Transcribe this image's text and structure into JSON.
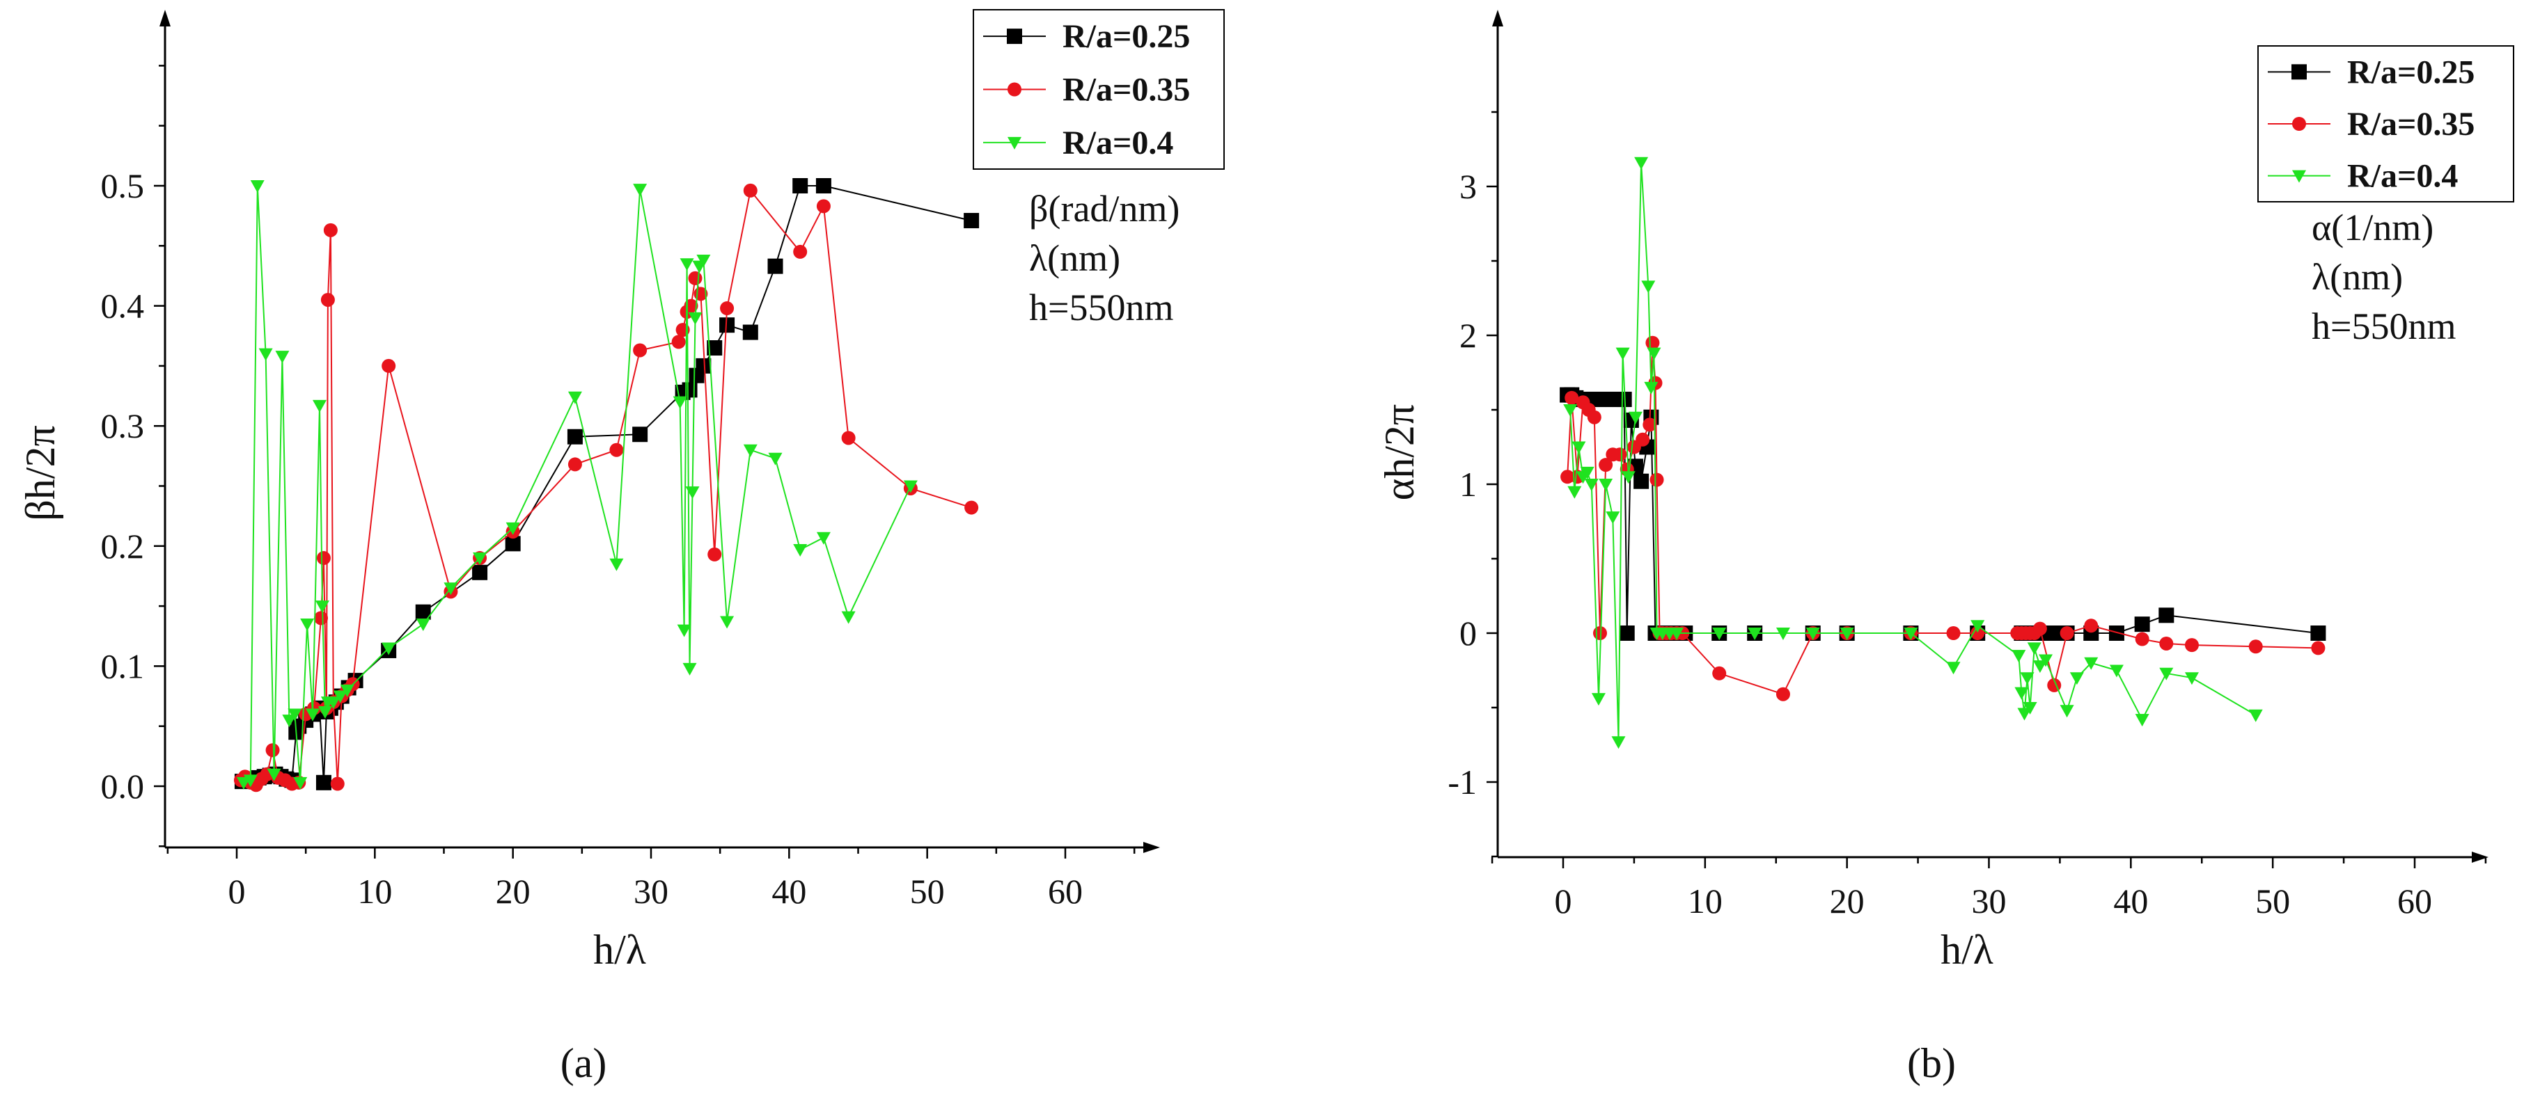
{
  "colors": {
    "R_0_25": "#000000",
    "R_0_35": "#e8141c",
    "R_0_4": "#1fe21f",
    "axis": "#000000"
  },
  "chart_data": [
    {
      "type": "line",
      "panel": "a",
      "caption": "(a)",
      "xlabel": "h/λ",
      "ylabel": "βh/2π",
      "xlim": [
        -5,
        65
      ],
      "ylim": [
        -0.05,
        0.63
      ],
      "xticks": [
        0,
        10,
        20,
        30,
        40,
        50,
        60
      ],
      "xtick_labels": [
        "0",
        "10",
        "20",
        "30",
        "40",
        "50",
        "60"
      ],
      "yticks": [
        0.0,
        0.1,
        0.2,
        0.3,
        0.4,
        0.5
      ],
      "ytick_labels": [
        "0.0",
        "0.1",
        "0.2",
        "0.3",
        "0.4",
        "0.5"
      ],
      "annotations": [
        "β(rad/nm)",
        "λ(nm)",
        "h=550nm"
      ],
      "legend": [
        "R/a=0.25",
        "R/a=0.35",
        "R/a=0.4"
      ],
      "legend_position": "top-right",
      "series": [
        {
          "name": "R/a=0.25",
          "marker": "square",
          "x": [
            0.4,
            0.8,
            1.2,
            1.6,
            2.0,
            2.4,
            2.8,
            3.2,
            3.6,
            4.0,
            4.3,
            4.5,
            5.0,
            5.5,
            6.0,
            6.3,
            6.5,
            6.8,
            7.2,
            7.6,
            8.1,
            8.6,
            11.0,
            13.5,
            17.6,
            20.0,
            24.5,
            29.2,
            32.3,
            32.8,
            33.3,
            33.8,
            34.6,
            35.5,
            37.2,
            39.0,
            40.8,
            42.5,
            53.2
          ],
          "y": [
            0.004,
            0.005,
            0.006,
            0.007,
            0.008,
            0.009,
            0.01,
            0.008,
            0.006,
            0.005,
            0.045,
            0.05,
            0.055,
            0.06,
            0.065,
            0.003,
            0.062,
            0.065,
            0.07,
            0.075,
            0.082,
            0.088,
            0.113,
            0.145,
            0.178,
            0.202,
            0.291,
            0.293,
            0.328,
            0.33,
            0.342,
            0.35,
            0.365,
            0.384,
            0.378,
            0.433,
            0.5,
            0.5,
            0.471
          ]
        },
        {
          "name": "R/a=0.35",
          "marker": "circle",
          "x": [
            0.3,
            0.6,
            1.0,
            1.4,
            1.8,
            2.2,
            2.6,
            3.0,
            3.5,
            4.0,
            4.5,
            5.0,
            5.6,
            6.1,
            6.3,
            6.5,
            6.6,
            6.8,
            7.0,
            7.3,
            7.6,
            8.0,
            8.4,
            11.0,
            15.5,
            17.6,
            20.0,
            24.5,
            27.5,
            29.2,
            32.0,
            32.3,
            32.6,
            32.9,
            33.2,
            33.6,
            34.6,
            35.5,
            37.2,
            40.8,
            42.5,
            44.3,
            48.8,
            53.2
          ],
          "y": [
            0.005,
            0.008,
            0.003,
            0.001,
            0.006,
            0.01,
            0.03,
            0.007,
            0.005,
            0.002,
            0.003,
            0.06,
            0.065,
            0.14,
            0.19,
            0.065,
            0.405,
            0.463,
            0.07,
            0.002,
            0.075,
            0.08,
            0.085,
            0.35,
            0.162,
            0.19,
            0.212,
            0.268,
            0.28,
            0.363,
            0.37,
            0.38,
            0.395,
            0.4,
            0.423,
            0.41,
            0.193,
            0.398,
            0.496,
            0.445,
            0.483,
            0.29,
            0.248,
            0.232
          ]
        },
        {
          "name": "R/a=0.4",
          "marker": "triangle-down",
          "x": [
            0.5,
            1.0,
            1.5,
            2.1,
            2.7,
            3.3,
            3.8,
            4.2,
            4.6,
            5.1,
            5.5,
            6.0,
            6.2,
            6.4,
            6.6,
            7.0,
            7.5,
            8.0,
            11.0,
            13.5,
            15.5,
            17.6,
            20.0,
            24.5,
            27.5,
            29.2,
            32.1,
            32.4,
            32.6,
            32.8,
            33.0,
            33.2,
            33.5,
            33.8,
            35.5,
            37.2,
            39.0,
            40.8,
            42.5,
            44.3,
            48.8
          ],
          "y": [
            0.003,
            0.005,
            0.5,
            0.36,
            0.01,
            0.358,
            0.055,
            0.06,
            0.003,
            0.135,
            0.06,
            0.317,
            0.15,
            0.062,
            0.07,
            0.07,
            0.075,
            0.08,
            0.115,
            0.135,
            0.165,
            0.19,
            0.215,
            0.324,
            0.185,
            0.497,
            0.32,
            0.13,
            0.435,
            0.098,
            0.245,
            0.39,
            0.433,
            0.438,
            0.137,
            0.28,
            0.273,
            0.197,
            0.207,
            0.141,
            0.25
          ]
        }
      ]
    },
    {
      "type": "line",
      "panel": "b",
      "caption": "(b)",
      "xlabel": "h/λ",
      "ylabel": "αh/2π",
      "xlim": [
        -5,
        65
      ],
      "ylim": [
        -1.5,
        3.9
      ],
      "xticks": [
        0,
        10,
        20,
        30,
        40,
        50,
        60
      ],
      "xtick_labels": [
        "0",
        "10",
        "20",
        "30",
        "40",
        "50",
        "60"
      ],
      "yticks": [
        -1,
        0,
        1,
        2,
        3
      ],
      "ytick_labels": [
        "-1",
        "0",
        "1",
        "2",
        "3"
      ],
      "annotations": [
        "α(1/nm)",
        "λ(nm)",
        "h=550nm"
      ],
      "legend": [
        "R/a=0.25",
        "R/a=0.35",
        "R/a=0.4"
      ],
      "legend_position": "top-right",
      "series": [
        {
          "name": "R/a=0.25",
          "marker": "square",
          "x": [
            0.3,
            0.6,
            0.9,
            1.2,
            1.6,
            2.0,
            2.5,
            3.0,
            3.5,
            4.0,
            4.3,
            4.5,
            4.8,
            5.1,
            5.5,
            5.9,
            6.2,
            6.5,
            6.8,
            7.2,
            7.6,
            8.1,
            8.6,
            11.0,
            13.5,
            17.6,
            20.0,
            24.5,
            29.2,
            32.3,
            32.8,
            33.3,
            33.8,
            34.6,
            35.5,
            37.2,
            39.0,
            40.8,
            42.5,
            53.2
          ],
          "y": [
            1.6,
            1.6,
            1.58,
            1.57,
            1.57,
            1.57,
            1.57,
            1.57,
            1.57,
            1.57,
            1.57,
            0.0,
            1.43,
            1.12,
            1.02,
            1.25,
            1.45,
            0.0,
            0.0,
            0.0,
            0.0,
            0.0,
            0.0,
            0.0,
            0.0,
            0.0,
            0.0,
            0.0,
            0.0,
            0.0,
            0.0,
            0.0,
            0.0,
            0.0,
            0.0,
            0.0,
            0.0,
            0.06,
            0.12,
            0.0
          ]
        },
        {
          "name": "R/a=0.35",
          "marker": "circle",
          "x": [
            0.3,
            0.6,
            1.0,
            1.4,
            1.8,
            2.2,
            2.6,
            3.0,
            3.5,
            4.0,
            4.5,
            5.0,
            5.6,
            6.1,
            6.3,
            6.5,
            6.6,
            6.8,
            7.0,
            7.3,
            7.6,
            8.0,
            8.4,
            11.0,
            15.5,
            17.6,
            20.0,
            24.5,
            27.5,
            29.2,
            32.0,
            32.3,
            32.6,
            32.9,
            33.2,
            33.6,
            34.6,
            35.5,
            37.2,
            40.8,
            42.5,
            44.3,
            48.8,
            53.2
          ],
          "y": [
            1.05,
            1.58,
            1.05,
            1.55,
            1.5,
            1.45,
            0.0,
            1.13,
            1.2,
            1.2,
            1.1,
            1.25,
            1.3,
            1.4,
            1.95,
            1.68,
            1.03,
            0.0,
            0.0,
            0.0,
            0.0,
            0.0,
            0.0,
            -0.27,
            -0.41,
            0.0,
            0.0,
            0.0,
            0.0,
            0.0,
            0.0,
            0.0,
            0.0,
            0.0,
            0.0,
            0.03,
            -0.35,
            0.0,
            0.05,
            -0.04,
            -0.07,
            -0.08,
            -0.09,
            -0.1
          ]
        },
        {
          "name": "R/a=0.4",
          "marker": "triangle-down",
          "x": [
            0.5,
            0.8,
            1.1,
            1.4,
            1.7,
            2.0,
            2.5,
            3.0,
            3.5,
            3.9,
            4.2,
            4.6,
            5.1,
            5.5,
            6.0,
            6.2,
            6.4,
            6.6,
            7.0,
            7.5,
            8.0,
            11.0,
            13.5,
            15.5,
            17.6,
            20.0,
            24.5,
            27.5,
            29.2,
            32.1,
            32.3,
            32.5,
            32.7,
            32.9,
            33.2,
            33.6,
            34.0,
            35.5,
            36.2,
            37.2,
            39.0,
            40.8,
            42.5,
            44.3,
            48.8
          ],
          "y": [
            1.5,
            0.95,
            1.25,
            1.05,
            1.08,
            1.0,
            -0.44,
            1.0,
            0.78,
            -0.73,
            1.88,
            1.05,
            1.45,
            3.16,
            2.33,
            1.65,
            1.88,
            0.0,
            0.0,
            0.0,
            0.0,
            0.0,
            0.0,
            0.0,
            0.0,
            0.0,
            0.0,
            -0.23,
            0.05,
            -0.15,
            -0.4,
            -0.54,
            -0.3,
            -0.5,
            -0.1,
            -0.22,
            -0.18,
            -0.52,
            -0.3,
            -0.2,
            -0.25,
            -0.58,
            -0.27,
            -0.3,
            -0.55
          ]
        }
      ]
    }
  ]
}
